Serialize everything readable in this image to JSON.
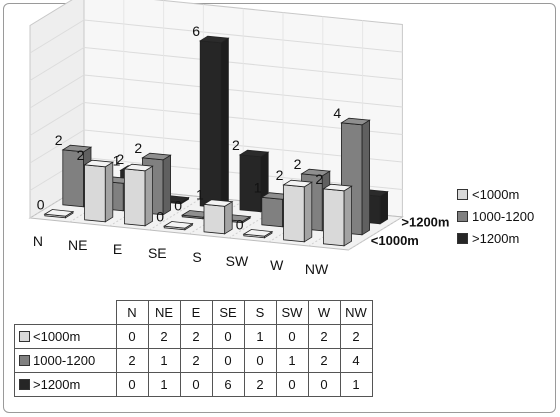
{
  "chart_data": {
    "type": "bar",
    "categories": [
      "N",
      "NE",
      "E",
      "SE",
      "S",
      "SW",
      "W",
      "NW"
    ],
    "series": [
      {
        "name": "<1000m",
        "values": [
          0,
          2,
          2,
          0,
          1,
          0,
          2,
          2
        ],
        "color": "#d9d9d9"
      },
      {
        "name": "1000-1200",
        "values": [
          2,
          1,
          2,
          0,
          0,
          1,
          2,
          4
        ],
        "color": "#808080"
      },
      {
        "name": ">1200m",
        "values": [
          0,
          1,
          0,
          6,
          2,
          0,
          0,
          1
        ],
        "color": "#262626"
      }
    ],
    "depth_labels": [
      ">1200m",
      "<1000m"
    ],
    "ylim": [
      0,
      7
    ],
    "grid": true,
    "legend": "right"
  }
}
